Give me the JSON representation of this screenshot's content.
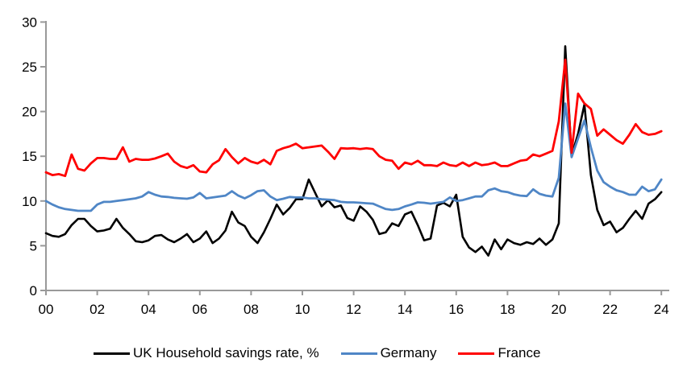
{
  "chart_data": {
    "type": "line",
    "title": "",
    "xlabel": "",
    "ylabel": "",
    "grid": false,
    "legend_position": "bottom",
    "background_color": "#ffffff",
    "axis_color": "#999999",
    "tick_label_color": "#000000",
    "x_start": 2000,
    "x_step": 0.25,
    "xlim": [
      2000,
      2024.3
    ],
    "ylim": [
      0,
      30
    ],
    "y_axis": {
      "ticks": [
        0,
        5,
        10,
        15,
        20,
        25,
        30
      ]
    },
    "x_axis": {
      "tick_years": [
        2000,
        2002,
        2004,
        2006,
        2008,
        2010,
        2012,
        2014,
        2016,
        2018,
        2020,
        2022,
        2024
      ],
      "tick_labels": [
        "00",
        "02",
        "04",
        "06",
        "08",
        "10",
        "12",
        "14",
        "16",
        "18",
        "20",
        "22",
        "24"
      ]
    },
    "series": [
      {
        "name": "UK Household savings rate, %",
        "color": "#000000",
        "stroke_width": 2.6,
        "values": [
          6.4,
          6.1,
          6.0,
          6.3,
          7.3,
          8.0,
          8.0,
          7.2,
          6.6,
          6.7,
          6.9,
          8.0,
          7.0,
          6.3,
          5.5,
          5.4,
          5.6,
          6.1,
          6.2,
          5.7,
          5.4,
          5.8,
          6.3,
          5.4,
          5.8,
          6.6,
          5.3,
          5.8,
          6.7,
          8.8,
          7.6,
          7.2,
          6.0,
          5.3,
          6.5,
          8.0,
          9.6,
          8.5,
          9.2,
          10.2,
          10.2,
          12.4,
          10.9,
          9.4,
          10.1,
          9.3,
          9.5,
          8.1,
          7.8,
          9.4,
          8.8,
          7.9,
          6.3,
          6.5,
          7.5,
          7.2,
          8.5,
          8.8,
          7.3,
          5.6,
          5.8,
          9.5,
          9.8,
          9.4,
          10.7,
          6.0,
          4.8,
          4.3,
          4.9,
          3.9,
          5.7,
          4.6,
          5.7,
          5.3,
          5.1,
          5.4,
          5.2,
          5.8,
          5.1,
          5.7,
          7.5,
          27.3,
          15.1,
          17.5,
          20.8,
          12.9,
          9.0,
          7.3,
          7.7,
          6.5,
          7.0,
          8.0,
          8.9,
          8.0,
          9.7,
          10.2,
          11.0
        ]
      },
      {
        "name": "Germany",
        "color": "#4f86c6",
        "stroke_width": 2.8,
        "values": [
          10.0,
          9.6,
          9.3,
          9.1,
          9.0,
          8.9,
          8.9,
          8.9,
          9.6,
          9.9,
          9.9,
          10.0,
          10.1,
          10.2,
          10.3,
          10.5,
          11.0,
          10.7,
          10.5,
          10.45,
          10.35,
          10.3,
          10.25,
          10.4,
          10.9,
          10.3,
          10.4,
          10.5,
          10.6,
          11.1,
          10.6,
          10.3,
          10.65,
          11.1,
          11.2,
          10.5,
          10.1,
          10.25,
          10.45,
          10.4,
          10.4,
          10.3,
          10.3,
          10.2,
          10.15,
          10.1,
          9.9,
          9.85,
          9.85,
          9.8,
          9.75,
          9.7,
          9.4,
          9.1,
          9.0,
          9.1,
          9.4,
          9.6,
          9.85,
          9.8,
          9.7,
          9.8,
          9.9,
          10.4,
          10.0,
          10.1,
          10.3,
          10.5,
          10.5,
          11.2,
          11.4,
          11.1,
          11.0,
          10.75,
          10.6,
          10.55,
          11.3,
          10.8,
          10.6,
          10.5,
          12.6,
          20.9,
          14.9,
          17.0,
          19.0,
          16.0,
          13.4,
          12.1,
          11.6,
          11.2,
          11.0,
          10.7,
          10.7,
          11.6,
          11.1,
          11.3,
          12.4
        ]
      },
      {
        "name": "France",
        "color": "#ff0000",
        "stroke_width": 2.8,
        "values": [
          13.2,
          12.9,
          13.0,
          12.8,
          15.2,
          13.6,
          13.4,
          14.2,
          14.8,
          14.8,
          14.7,
          14.7,
          16.0,
          14.4,
          14.7,
          14.6,
          14.6,
          14.75,
          15.0,
          15.3,
          14.4,
          13.9,
          13.7,
          14.0,
          13.3,
          13.2,
          14.1,
          14.55,
          15.8,
          14.9,
          14.2,
          14.8,
          14.4,
          14.2,
          14.6,
          14.1,
          15.6,
          15.9,
          16.1,
          16.4,
          15.9,
          16.0,
          16.1,
          16.2,
          15.5,
          14.7,
          15.9,
          15.85,
          15.9,
          15.8,
          15.9,
          15.8,
          15.0,
          14.6,
          14.5,
          13.6,
          14.3,
          14.1,
          14.5,
          14.0,
          14.0,
          13.9,
          14.3,
          14.0,
          13.9,
          14.3,
          13.9,
          14.3,
          14.0,
          14.1,
          14.3,
          13.9,
          13.9,
          14.2,
          14.5,
          14.6,
          15.2,
          15.0,
          15.3,
          15.6,
          18.9,
          25.8,
          15.4,
          22.0,
          20.9,
          20.3,
          17.3,
          18.0,
          17.4,
          16.8,
          16.4,
          17.4,
          18.6,
          17.7,
          17.4,
          17.5,
          17.8
        ]
      }
    ]
  }
}
